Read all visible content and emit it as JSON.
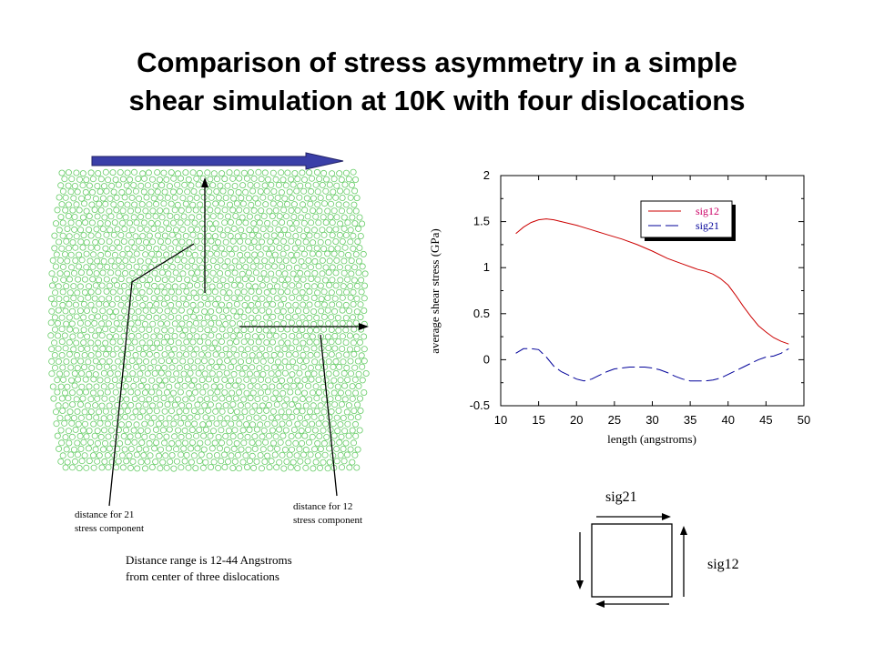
{
  "slide": {
    "title_line1": "Comparison of stress asymmetry in a simple",
    "title_line2": "shear simulation at 10K with four dislocations"
  },
  "annotations": {
    "label_21_line1": "distance for 21",
    "label_21_line2": "stress component",
    "label_12_line1": "distance for 12",
    "label_12_line2": "stress component",
    "range_line1": "Distance range is 12-44 Angstroms",
    "range_line2": "from center of three dislocations"
  },
  "colors": {
    "atom": "#66cc66",
    "shear_arrow": "#3a3fa8",
    "sig12": "#cc0000",
    "sig21": "#000099",
    "legend_sig12_text": "#cc0066",
    "legend_sig21_text": "#000099"
  },
  "chart_data": {
    "type": "line",
    "xlabel": "length (angstroms)",
    "ylabel": "average shear stress (GPa)",
    "xlim": [
      10,
      50
    ],
    "ylim": [
      -0.5,
      2
    ],
    "x_ticks": [
      10,
      15,
      20,
      25,
      30,
      35,
      40,
      45,
      50
    ],
    "y_ticks": [
      2,
      1.5,
      1,
      0.5,
      0,
      -0.5
    ],
    "y_tick_labels": [
      "2",
      "1.5",
      "1",
      "0.5",
      "0",
      "-0.5"
    ],
    "grid": false,
    "legend_position": "top-right",
    "series": [
      {
        "name": "sig12",
        "style": "solid",
        "x": [
          12,
          13,
          14,
          15,
          16,
          17,
          18,
          19,
          20,
          22,
          24,
          26,
          28,
          30,
          32,
          34,
          36,
          37,
          38,
          39,
          40,
          41,
          42,
          43,
          44,
          45,
          46,
          47,
          48
        ],
        "y": [
          1.37,
          1.44,
          1.49,
          1.52,
          1.53,
          1.52,
          1.5,
          1.48,
          1.46,
          1.41,
          1.36,
          1.31,
          1.25,
          1.18,
          1.1,
          1.04,
          0.98,
          0.96,
          0.93,
          0.88,
          0.81,
          0.7,
          0.58,
          0.47,
          0.37,
          0.3,
          0.24,
          0.2,
          0.17
        ]
      },
      {
        "name": "sig21",
        "style": "dashed",
        "x": [
          12,
          13,
          14,
          15,
          16,
          17,
          18,
          19,
          20,
          21,
          22,
          23,
          24,
          25,
          26,
          27,
          28,
          29,
          30,
          31,
          32,
          33,
          34,
          35,
          36,
          37,
          38,
          39,
          40,
          41,
          42,
          43,
          44,
          45,
          46,
          47,
          48
        ],
        "y": [
          0.07,
          0.12,
          0.12,
          0.11,
          0.03,
          -0.07,
          -0.13,
          -0.17,
          -0.21,
          -0.23,
          -0.21,
          -0.17,
          -0.13,
          -0.1,
          -0.09,
          -0.08,
          -0.08,
          -0.08,
          -0.09,
          -0.11,
          -0.14,
          -0.18,
          -0.21,
          -0.23,
          -0.23,
          -0.23,
          -0.22,
          -0.2,
          -0.16,
          -0.12,
          -0.08,
          -0.04,
          0.0,
          0.03,
          0.04,
          0.07,
          0.12
        ]
      }
    ]
  },
  "stress_diagram": {
    "top_label": "sig21",
    "right_label": "sig12"
  }
}
